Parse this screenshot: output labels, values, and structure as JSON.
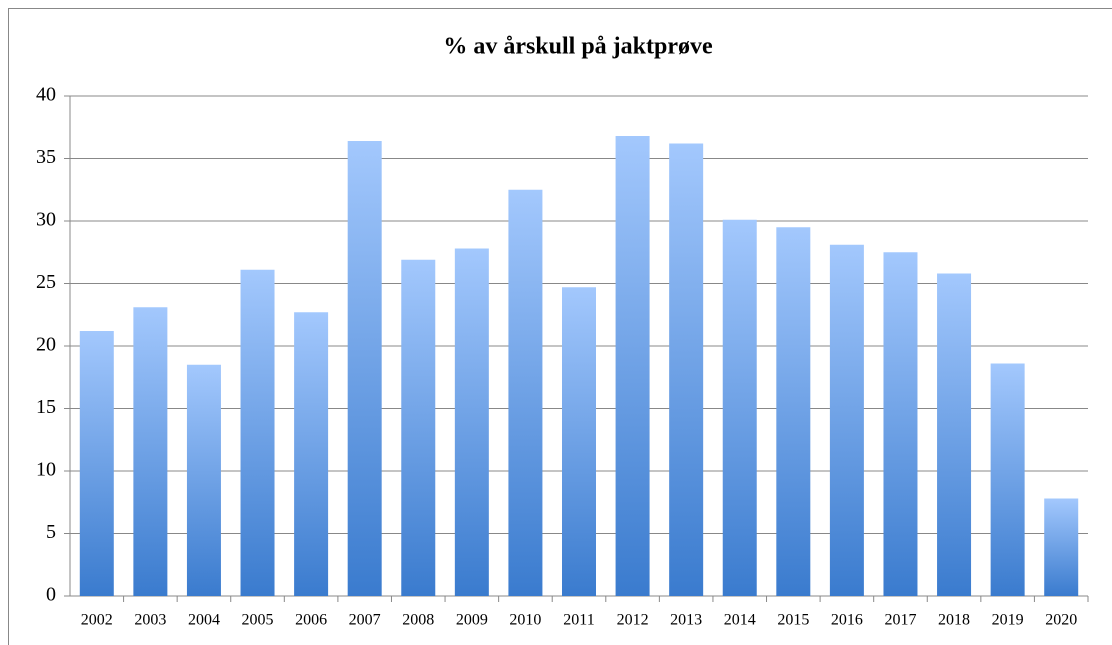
{
  "chart_data": {
    "type": "bar",
    "title": "% av årskull på jaktprøve",
    "categories": [
      "2002",
      "2003",
      "2004",
      "2005",
      "2006",
      "2007",
      "2008",
      "2009",
      "2010",
      "2011",
      "2012",
      "2013",
      "2014",
      "2015",
      "2016",
      "2017",
      "2018",
      "2019",
      "2020"
    ],
    "values": [
      21.2,
      23.1,
      18.5,
      26.1,
      22.7,
      36.4,
      26.9,
      27.8,
      32.5,
      24.7,
      36.8,
      36.2,
      30.1,
      29.5,
      28.1,
      27.5,
      25.8,
      18.6,
      7.8
    ],
    "gradient": [
      "#a3c8fd",
      "#3a7bce"
    ],
    "ylim": [
      0,
      40
    ],
    "yticks": [
      0,
      5,
      10,
      15,
      20,
      25,
      30,
      35,
      40
    ],
    "grid": true
  }
}
